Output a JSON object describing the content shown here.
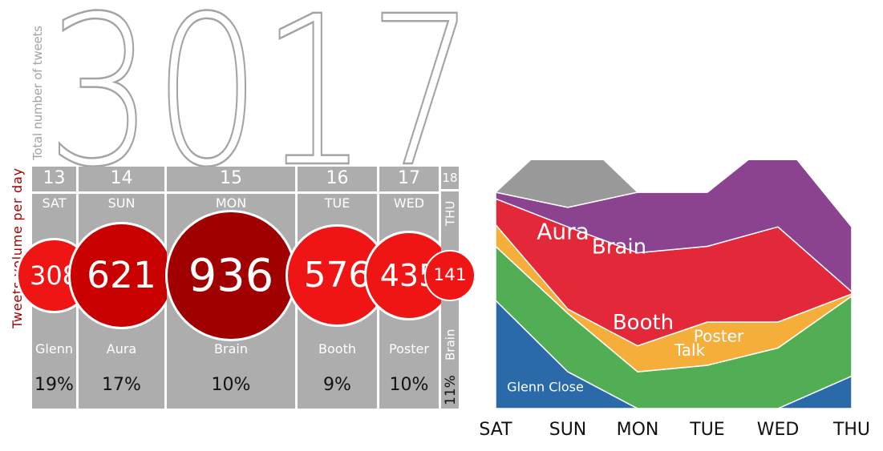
{
  "total": {
    "value": "3017",
    "label": "Total number of tweets"
  },
  "volume_label": "Tweets volume per day",
  "days": [
    {
      "date": "13",
      "day": "SAT",
      "value": 308,
      "topic": "Glenn",
      "pct": "19%"
    },
    {
      "date": "14",
      "day": "SUN",
      "value": 621,
      "topic": "Aura",
      "pct": "17%"
    },
    {
      "date": "15",
      "day": "MON",
      "value": 936,
      "topic": "Brain",
      "pct": "10%"
    },
    {
      "date": "16",
      "day": "TUE",
      "value": 576,
      "topic": "Booth",
      "pct": "9%"
    },
    {
      "date": "17",
      "day": "WED",
      "value": 435,
      "topic": "Poster",
      "pct": "10%"
    },
    {
      "date": "18",
      "day": "THU",
      "value": 141,
      "topic": "Brain",
      "pct": "11%"
    }
  ],
  "colors": {
    "panel": "#adadad",
    "bubble_dark": "#a10000",
    "bubble_mid": "#c80000",
    "bubble_bright": "#f01515",
    "label_red": "#a00000"
  },
  "chart_data": {
    "type": "area",
    "stacked": true,
    "categories": [
      "SAT",
      "SUN",
      "MON",
      "TUE",
      "WED",
      "THU"
    ],
    "series": [
      {
        "name": "Glenn Close",
        "color": "#2a6aa8",
        "values": [
          0.5,
          0.17,
          0.0,
          0.0,
          0.0,
          0.15
        ]
      },
      {
        "name": "Poster",
        "color": "#51ae55",
        "values": [
          0.25,
          0.27,
          0.17,
          0.2,
          0.28,
          0.37
        ]
      },
      {
        "name": "Talk",
        "color": "#f6ae3b",
        "values": [
          0.1,
          0.02,
          0.12,
          0.2,
          0.12,
          0.01
        ]
      },
      {
        "name": "Booth",
        "color": "#e3283a",
        "values": [
          0.12,
          0.38,
          0.43,
          0.35,
          0.44,
          0.01
        ]
      },
      {
        "name": "Brain",
        "color": "#8b4390",
        "values": [
          0.03,
          0.09,
          0.28,
          0.25,
          0.42,
          0.3
        ]
      },
      {
        "name": "Aura",
        "color": "#999999",
        "values": [
          0.0,
          0.38,
          0.0,
          0.0,
          0.0,
          0.0
        ]
      }
    ]
  }
}
